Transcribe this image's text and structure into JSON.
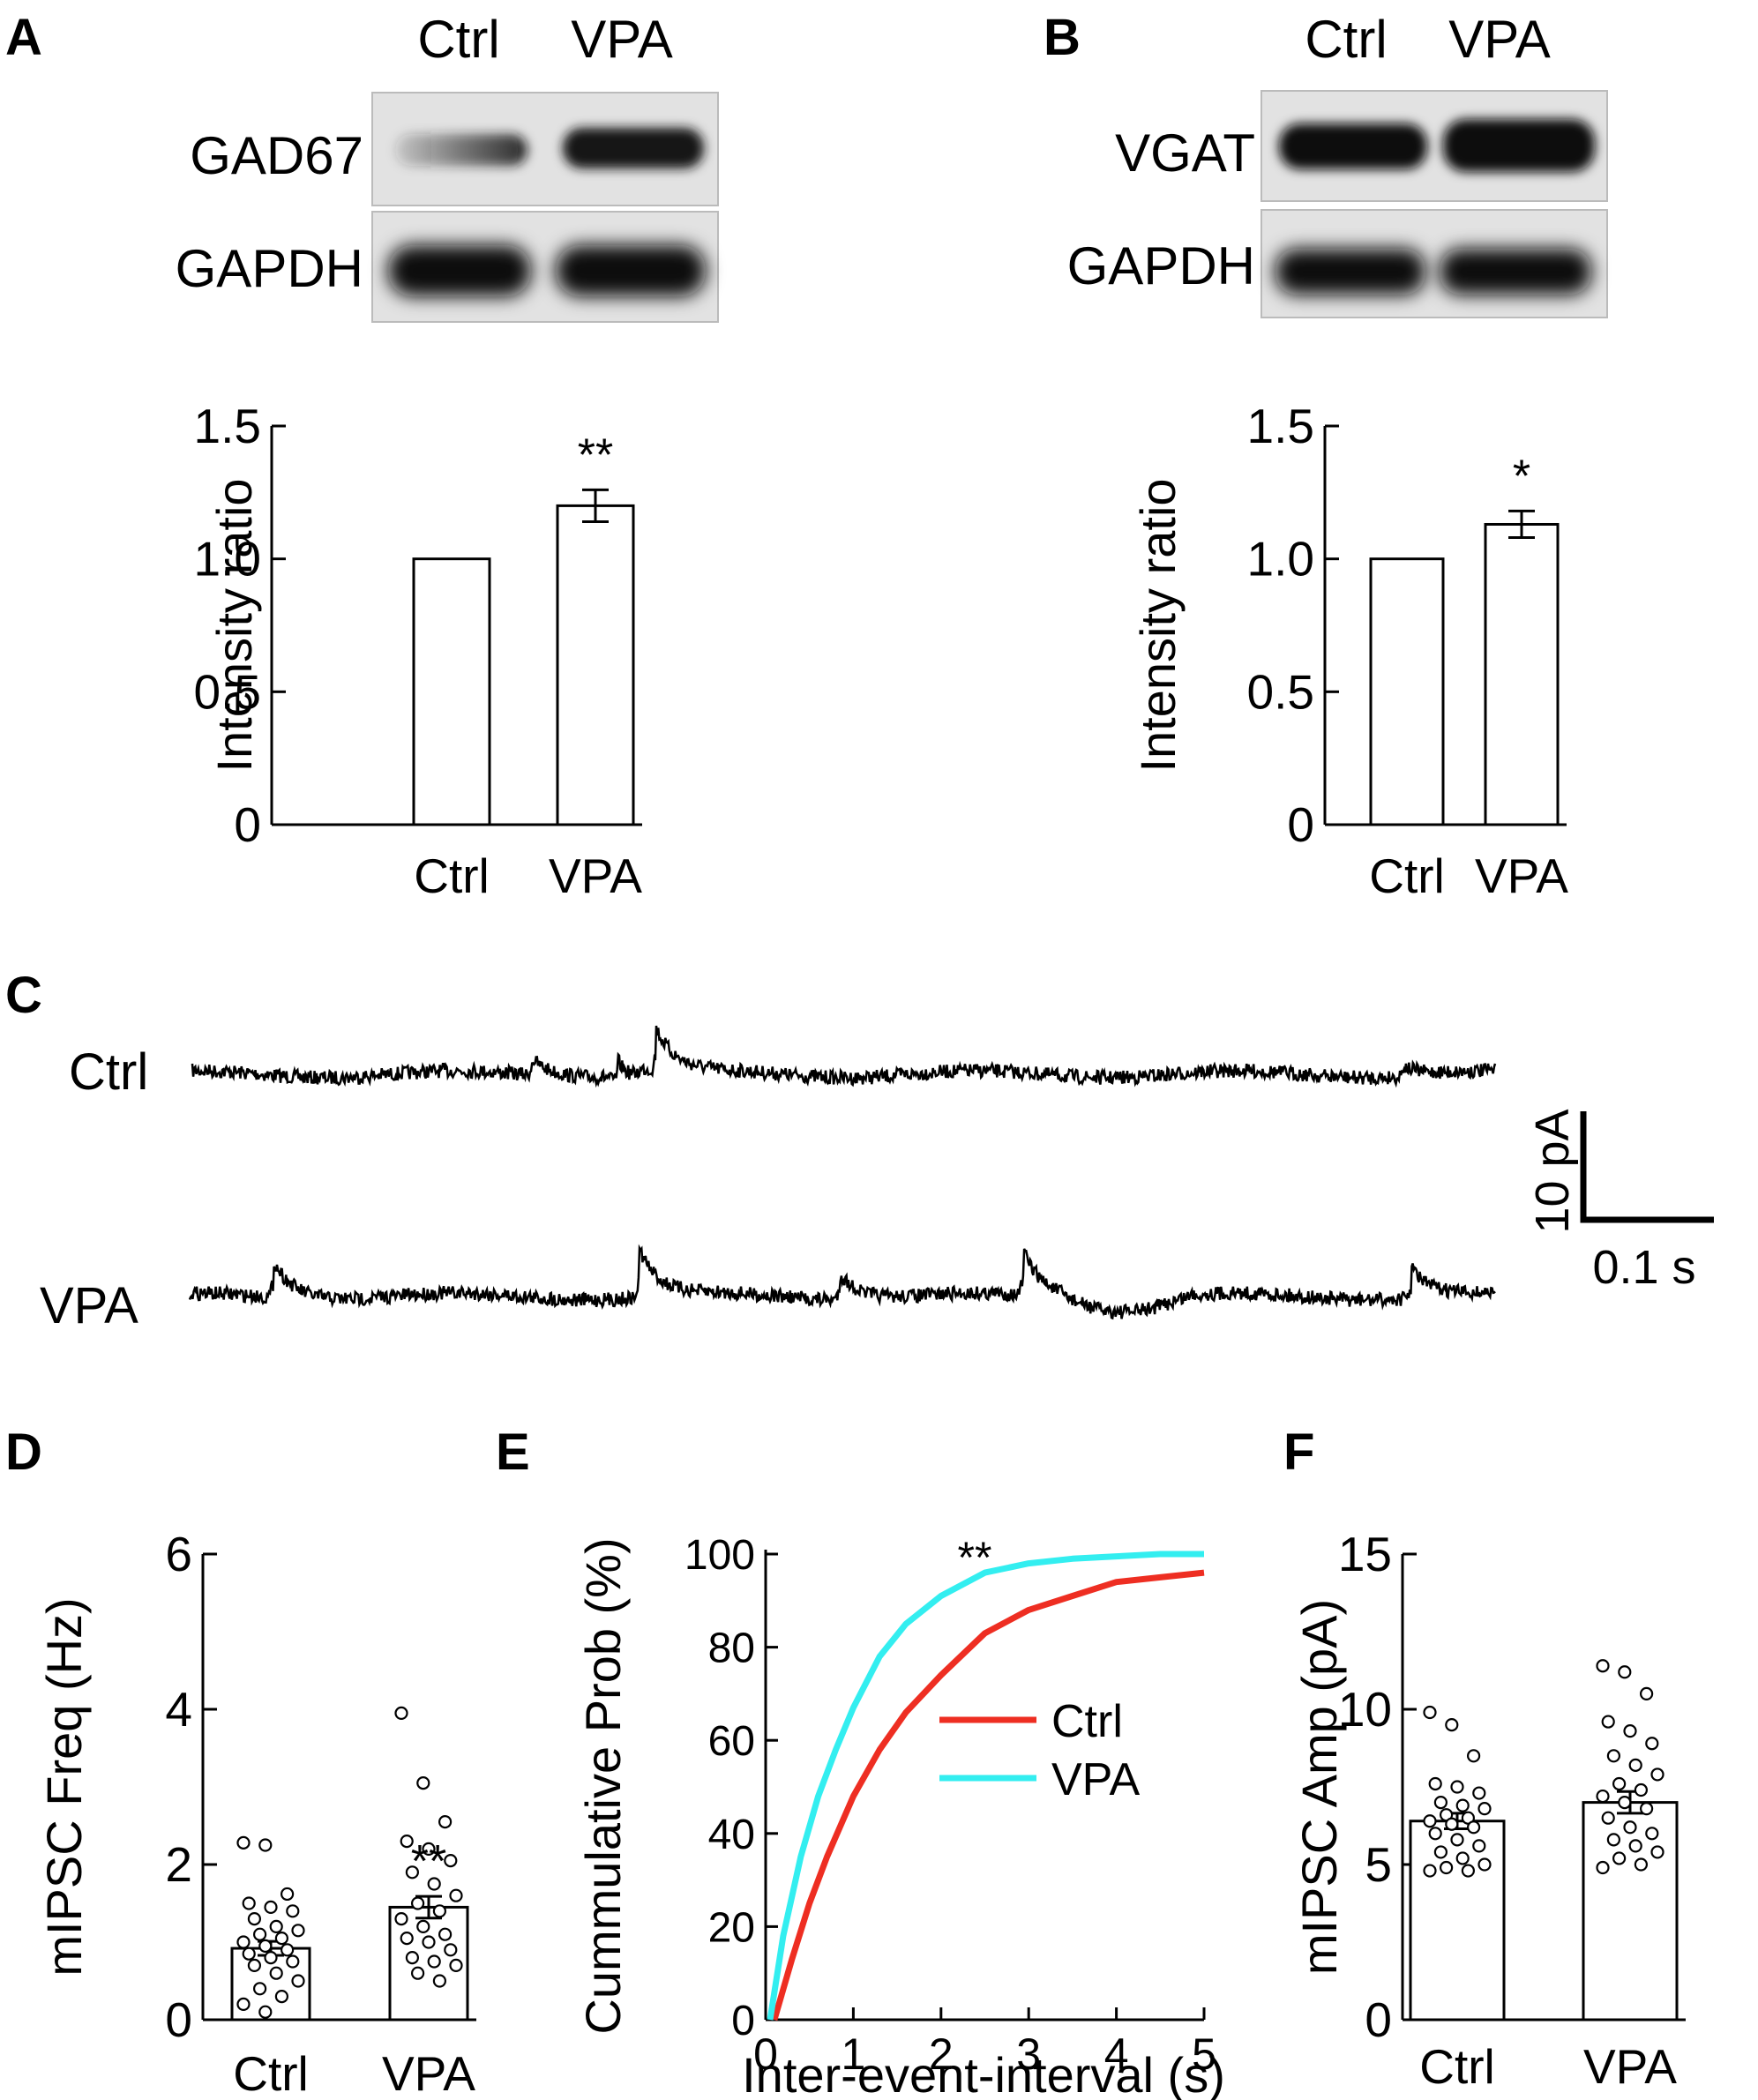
{
  "panels": {
    "A": "A",
    "B": "B",
    "C": "C",
    "D": "D",
    "E": "E",
    "F": "F"
  },
  "blots": {
    "A": {
      "lanes": [
        "Ctrl",
        "VPA"
      ],
      "rows": [
        "GAD67",
        "GAPDH"
      ]
    },
    "B": {
      "lanes": [
        "Ctrl",
        "VPA"
      ],
      "rows": [
        "VGAT",
        "GAPDH"
      ]
    }
  },
  "traces": {
    "labels": [
      "Ctrl",
      "VPA"
    ],
    "scalebar": {
      "y_label": "10 pA",
      "x_label": "0.1 s"
    }
  },
  "chart_data": [
    {
      "id": "A",
      "type": "bar",
      "categories": [
        "Ctrl",
        "VPA"
      ],
      "values": [
        1.0,
        1.2
      ],
      "errors": [
        0,
        0.06
      ],
      "ylabel": "Intensity ratio",
      "ylim": [
        0,
        1.5
      ],
      "yticks": [
        "0",
        "0.5",
        "1.0",
        "1.5"
      ],
      "significance": "**"
    },
    {
      "id": "B",
      "type": "bar",
      "categories": [
        "Ctrl",
        "VPA"
      ],
      "values": [
        1.0,
        1.13
      ],
      "errors": [
        0,
        0.05
      ],
      "ylabel": "Intensity ratio",
      "ylim": [
        0,
        1.5
      ],
      "yticks": [
        "0",
        "0.5",
        "1.0",
        "1.5"
      ],
      "significance": "*"
    },
    {
      "id": "D",
      "type": "bar",
      "categories": [
        "Ctrl",
        "VPA"
      ],
      "values": [
        0.92,
        1.45
      ],
      "errors": [
        0.09,
        0.14
      ],
      "ylabel": "mIPSC Freq (Hz)",
      "ylim": [
        0,
        6
      ],
      "yticks": [
        "0",
        "2",
        "4",
        "6"
      ],
      "significance": "**",
      "points": [
        [
          2.28,
          2.25,
          1.62,
          1.5,
          1.45,
          1.4,
          1.3,
          1.2,
          1.15,
          1.1,
          1.05,
          1.0,
          0.95,
          0.9,
          0.85,
          0.8,
          0.75,
          0.7,
          0.6,
          0.5,
          0.4,
          0.3,
          0.2,
          0.1
        ],
        [
          3.95,
          3.05,
          2.55,
          2.3,
          2.2,
          2.05,
          1.9,
          1.75,
          1.6,
          1.5,
          1.4,
          1.3,
          1.2,
          1.1,
          1.05,
          1.0,
          0.9,
          0.8,
          0.75,
          0.7,
          0.6,
          0.5
        ]
      ]
    },
    {
      "id": "E",
      "type": "line",
      "xlabel": "Inter-event-interval (s)",
      "ylabel": "Cummulative Prob (%)",
      "xlim": [
        0,
        5
      ],
      "ylim": [
        0,
        100
      ],
      "xticks": [
        "0",
        "1",
        "2",
        "3",
        "4",
        "5"
      ],
      "yticks": [
        "0",
        "20",
        "40",
        "60",
        "80",
        "100"
      ],
      "significance": "**",
      "series": [
        {
          "name": "Ctrl",
          "color": "#ee2e22",
          "x": [
            0.1,
            0.3,
            0.5,
            0.7,
            1.0,
            1.3,
            1.6,
            2.0,
            2.5,
            3.0,
            3.5,
            4.0,
            4.5,
            5.0
          ],
          "y": [
            0,
            13,
            25,
            35,
            48,
            58,
            66,
            74,
            83,
            88,
            91,
            94,
            95,
            96
          ]
        },
        {
          "name": "VPA",
          "color": "#33eef0",
          "x": [
            0.05,
            0.2,
            0.4,
            0.6,
            0.8,
            1.0,
            1.3,
            1.6,
            2.0,
            2.5,
            3.0,
            3.5,
            4.0,
            4.5,
            5.0
          ],
          "y": [
            0,
            18,
            35,
            48,
            58,
            67,
            78,
            85,
            91,
            96,
            98,
            99,
            99.5,
            100,
            100
          ]
        }
      ]
    },
    {
      "id": "F",
      "type": "bar",
      "categories": [
        "Ctrl",
        "VPA"
      ],
      "values": [
        6.4,
        7.0
      ],
      "errors": [
        0.25,
        0.35
      ],
      "ylabel": "mIPSC Amp (pA)",
      "ylim": [
        0,
        15
      ],
      "yticks": [
        "0",
        "5",
        "10",
        "15"
      ],
      "points": [
        [
          9.9,
          9.5,
          8.5,
          7.6,
          7.5,
          7.3,
          7.0,
          6.9,
          6.8,
          6.6,
          6.5,
          6.4,
          6.3,
          6.2,
          6.0,
          5.8,
          5.6,
          5.4,
          5.2,
          5.0,
          4.9,
          4.8,
          4.8
        ],
        [
          11.4,
          11.2,
          10.5,
          9.6,
          9.3,
          8.9,
          8.5,
          8.2,
          7.9,
          7.6,
          7.4,
          7.2,
          7.0,
          6.8,
          6.5,
          6.2,
          6.0,
          5.8,
          5.6,
          5.4,
          5.2,
          5.0,
          4.9
        ]
      ]
    }
  ]
}
